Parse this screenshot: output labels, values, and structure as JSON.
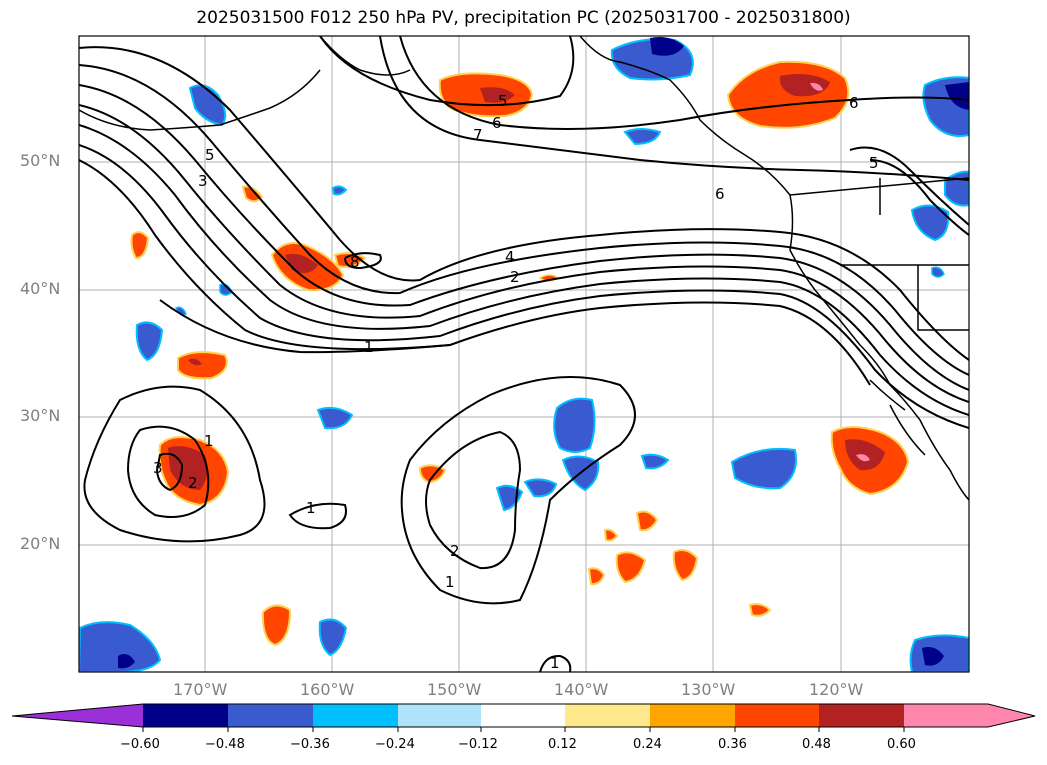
{
  "title": "2025031500 F012 250 hPa PV, precipitation PC (2025031700 - 2025031800)",
  "lat_labels": [
    "50°N",
    "40°N",
    "30°N",
    "20°N"
  ],
  "lon_labels": [
    "170°W",
    "160°W",
    "150°W",
    "140°W",
    "130°W",
    "120°W"
  ],
  "colorbar": {
    "ticks": [
      "−0.60",
      "−0.48",
      "−0.36",
      "−0.24",
      "−0.12",
      "0.12",
      "0.24",
      "0.36",
      "0.48",
      "0.60"
    ],
    "colors": [
      "#9b30d8",
      "#00008b",
      "#3a5bd0",
      "#00bfff",
      "#aee3fa",
      "#ffffff",
      "#fde98c",
      "#ffa500",
      "#ff4500",
      "#b22222",
      "#ff86ad"
    ]
  },
  "contour_labels": [
    "5",
    "6",
    "7",
    "6",
    "5",
    "6",
    "5",
    "3",
    "8",
    "4",
    "2",
    "1",
    "1",
    "3",
    "2",
    "1",
    "2",
    "1",
    "1"
  ]
}
